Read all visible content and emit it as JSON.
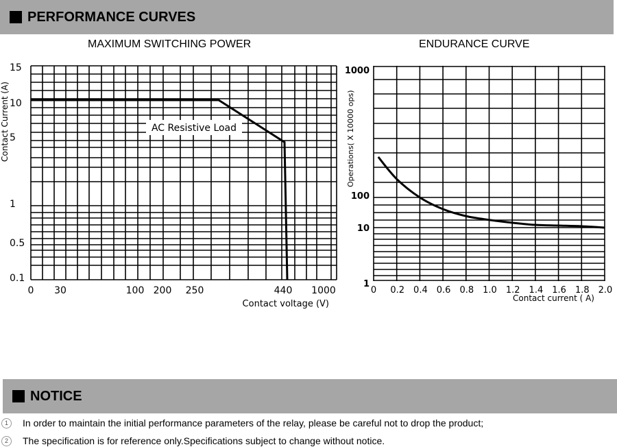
{
  "sections": {
    "performance_title": "PERFORMANCE CURVES",
    "notice_title": "NOTICE"
  },
  "notices": [
    {
      "num": "1",
      "text": "In order to maintain the initial performance parameters of the relay, please be careful not to drop the product;"
    },
    {
      "num": "2",
      "text": "The specification is for reference only.Specifications subject to change without notice."
    }
  ],
  "chart_data": [
    {
      "type": "line",
      "title": "MAXIMUM SWITCHING POWER",
      "xlabel": "Contact voltage (V)",
      "ylabel": "Contact Current (A)",
      "x_ticks": [
        "0",
        "30",
        "100",
        "200",
        "250",
        "440",
        "1000"
      ],
      "y_ticks": [
        "15",
        "10",
        "5",
        "1",
        "0.5",
        "0.1"
      ],
      "annotation": "AC Resistive Load",
      "series": [
        {
          "name": "AC Resistive Load",
          "points": [
            [
              0,
              10
            ],
            [
              300,
              10
            ],
            [
              440,
              4.5
            ],
            [
              440,
              0.1
            ]
          ]
        }
      ],
      "grid": true
    },
    {
      "type": "line",
      "title": "ENDURANCE CURVE",
      "xlabel": "Contact current ( A)",
      "ylabel": "Operations( X 10000 ops)",
      "x_ticks": [
        "0",
        "0.2",
        "0.4",
        "0.6",
        "0.8",
        "1.0",
        "1.2",
        "1.4",
        "1.6",
        "1.8",
        "2.0"
      ],
      "y_ticks": [
        "1000",
        "100",
        "10",
        "1"
      ],
      "xlim": [
        0,
        2.0
      ],
      "series": [
        {
          "name": "Endurance",
          "points": [
            [
              0.04,
              203
            ],
            [
              0.2,
              138
            ],
            [
              0.4,
              100
            ],
            [
              0.6,
              41
            ],
            [
              0.8,
              24
            ],
            [
              1.0,
              18
            ],
            [
              1.2,
              14.5
            ],
            [
              1.4,
              12.3
            ],
            [
              1.6,
              11.7
            ],
            [
              1.8,
              11.1
            ],
            [
              2.0,
              10
            ]
          ]
        }
      ],
      "grid": true
    }
  ]
}
